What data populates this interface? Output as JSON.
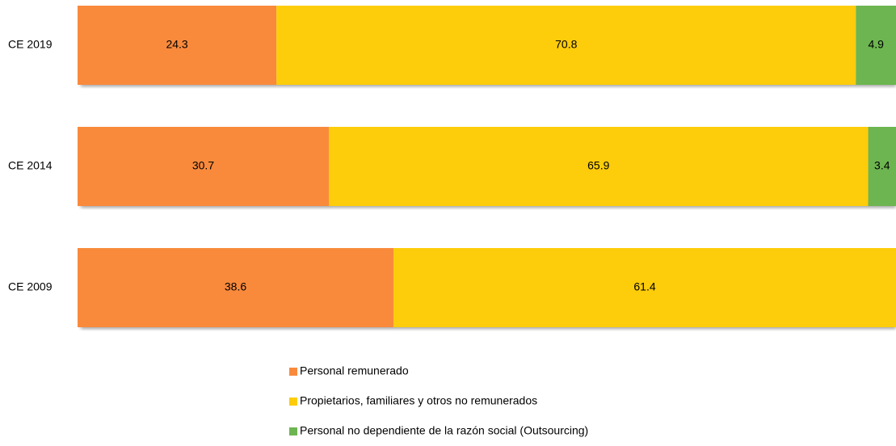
{
  "chart_data": {
    "type": "stacked-bar-horizontal",
    "categories": [
      "CE 2019",
      "CE 2014",
      "CE 2009"
    ],
    "series": [
      {
        "name": "Personal remunerado",
        "color": "#f98a3c",
        "values": [
          24.3,
          30.7,
          38.6
        ]
      },
      {
        "name": "Propietarios, familiares y otros no remunerados",
        "color": "#fdcc0a",
        "values": [
          70.8,
          65.9,
          61.4
        ]
      },
      {
        "name": "Personal no dependiente de la razón social (Outsourcing)",
        "color": "#6db550",
        "values": [
          4.9,
          3.4,
          null
        ]
      }
    ],
    "legend": "bottom"
  }
}
